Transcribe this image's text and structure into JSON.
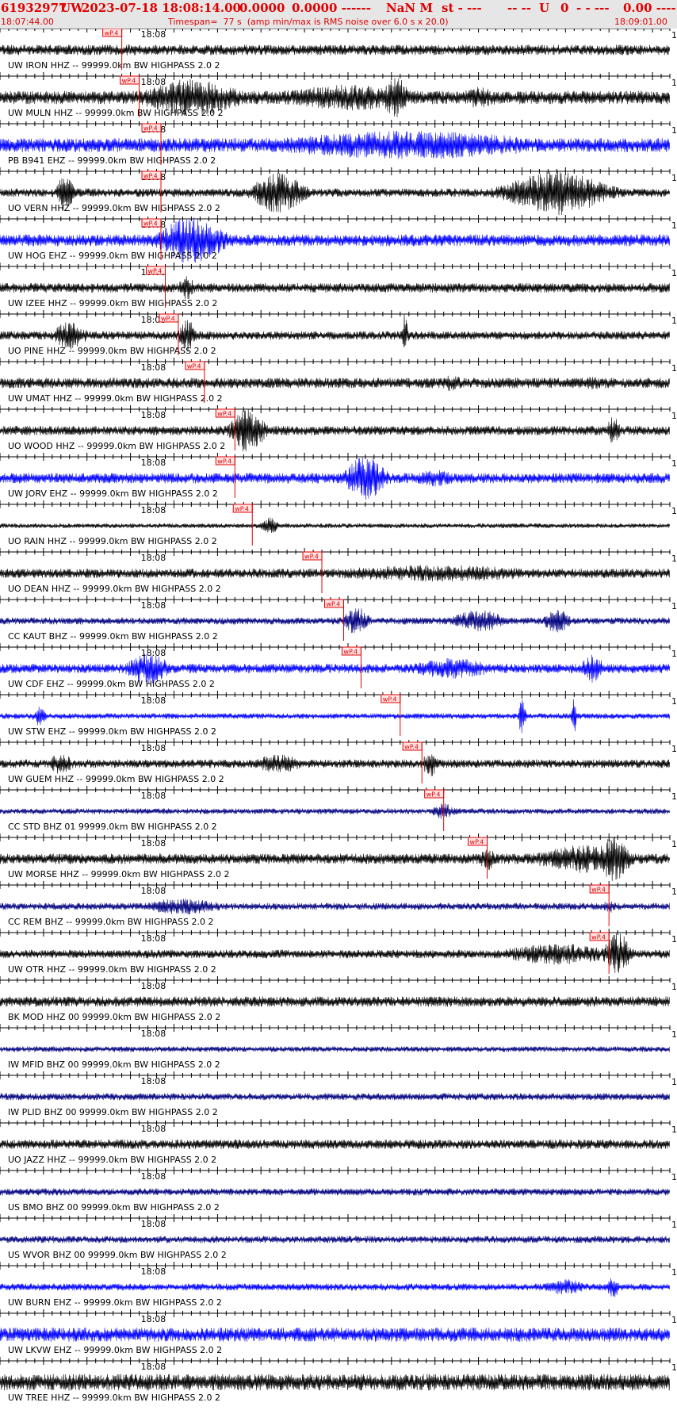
{
  "header": {
    "event_id": "61932977",
    "network": "UW",
    "datetime": "2023-07-18 18:08:14.00",
    "lat": "0.0000",
    "lon": "0.0000 ------",
    "magnitude": "NaN M",
    "mag_code": "st - ---",
    "flags": "-- --",
    "review": "U",
    "version": "0",
    "dashes": "- - ---",
    "right_value": "0.00 ----",
    "start_time": "18:07:44.00",
    "timespan_text": "Timespan=  77 s  (amp min/max is RMS noise over 6.0 s x 20.0)",
    "end_time": "18:09:01.00"
  },
  "colors": {
    "header_bg": "#e6e6e6",
    "header_text": "#e00000",
    "pick": "#e00000",
    "black": "#000000",
    "blue": "#0000ff",
    "navy": "#00007f"
  },
  "time_axis": {
    "start": "18:07:44.00",
    "end": "18:09:01.00",
    "span_s": 77,
    "minute_mark": "18:08",
    "minute_mark_s": 16,
    "tick_step_s": 1,
    "major_tick_step_s": 5
  },
  "scale_marker": "1",
  "pick_label": "wP.4",
  "chart_data": {
    "type": "line",
    "title": "",
    "x_unit": "seconds after 18:07:44.00",
    "xlim": [
      0,
      77
    ],
    "traces": [
      {
        "label": "UW IRON HHZ -- 99999.0km BW HIGHPASS 2.0 2",
        "color": "black",
        "pick_s": 14.0,
        "amp": 0.22,
        "bursts": [
          [
            15,
            2.5,
            0.25
          ],
          [
            28,
            2.5,
            0.15
          ]
        ]
      },
      {
        "label": "UW MULN HHZ -- 99999.0km BW HIGHPASS 2.0 2",
        "color": "black",
        "pick_s": 16.0,
        "amp": 0.28,
        "bursts": [
          [
            22,
            6,
            0.8
          ],
          [
            40,
            9,
            0.55
          ],
          [
            45.5,
            1.5,
            0.9
          ],
          [
            55,
            3,
            0.45
          ]
        ]
      },
      {
        "label": "PB B941 EHZ -- 99999.0km BW HIGHPASS 2.0 2",
        "color": "blue",
        "pick_s": 18.5,
        "amp": 0.3,
        "bursts": [
          [
            47,
            18,
            0.6
          ]
        ]
      },
      {
        "label": "UO VERN HHZ -- 99999.0km BW HIGHPASS 2.0 2",
        "color": "black",
        "pick_s": 18.5,
        "amp": 0.18,
        "bursts": [
          [
            7.5,
            1,
            0.8
          ],
          [
            32,
            3,
            0.9
          ],
          [
            64,
            6,
            0.95
          ]
        ]
      },
      {
        "label": "UW HOG EHZ -- 99999.0km BW HIGHPASS 2.0 2",
        "color": "blue",
        "pick_s": 18.5,
        "amp": 0.25,
        "bursts": [
          [
            22,
            4,
            1.0
          ]
        ]
      },
      {
        "label": "UW IZEE HHZ -- 99999.0km BW HIGHPASS 2.0 2",
        "color": "black",
        "pick_s": 19.0,
        "amp": 0.2,
        "bursts": [
          [
            21.5,
            1,
            0.5
          ]
        ]
      },
      {
        "label": "UO PINE HHZ -- 99999.0km BW HIGHPASS 2.0 2",
        "color": "black",
        "pick_s": 20.5,
        "amp": 0.18,
        "bursts": [
          [
            8,
            2,
            0.6
          ],
          [
            21.5,
            1,
            0.7
          ],
          [
            46.5,
            0.4,
            0.9
          ]
        ]
      },
      {
        "label": "UW UMAT HHZ -- 99999.0km BW HIGHPASS 2.0 2",
        "color": "black",
        "pick_s": 23.5,
        "amp": 0.22,
        "bursts": [
          [
            52,
            2,
            0.35
          ],
          [
            68,
            1.5,
            0.3
          ]
        ]
      },
      {
        "label": "UO WOOD HHZ -- 99999.0km BW HIGHPASS 2.0 2",
        "color": "black",
        "pick_s": 27.0,
        "amp": 0.2,
        "bursts": [
          [
            28.5,
            2,
            0.95
          ],
          [
            70.5,
            0.8,
            0.6
          ]
        ]
      },
      {
        "label": "UW JORV EHZ -- 99999.0km BW HIGHPASS 2.0 2",
        "color": "blue",
        "pick_s": 27.0,
        "amp": 0.22,
        "bursts": [
          [
            42,
            2.5,
            0.95
          ],
          [
            50,
            3,
            0.35
          ]
        ]
      },
      {
        "label": "UO RAIN HHZ -- 99999.0km BW HIGHPASS 2.0 2",
        "color": "black",
        "pick_s": 29.0,
        "amp": 0.1,
        "bursts": [
          [
            31,
            1,
            0.4
          ]
        ]
      },
      {
        "label": "UO DEAN HHZ -- 99999.0km BW HIGHPASS 2.0 2",
        "color": "black",
        "pick_s": 37.0,
        "amp": 0.2,
        "bursts": [
          [
            50,
            15,
            0.35
          ]
        ]
      },
      {
        "label": "CC KAUT BHZ -- 99999.0km BW HIGHPASS 2.0 2",
        "color": "navy",
        "pick_s": 39.5,
        "amp": 0.15,
        "bursts": [
          [
            41,
            1.5,
            0.6
          ],
          [
            55,
            3,
            0.5
          ],
          [
            64,
            1.5,
            0.55
          ]
        ]
      },
      {
        "label": "UW CDF EHZ -- 99999.0km BW HIGHPASS 2.0 2",
        "color": "blue",
        "pick_s": 41.5,
        "amp": 0.2,
        "bursts": [
          [
            17,
            2.5,
            0.7
          ],
          [
            52,
            5,
            0.45
          ],
          [
            68,
            1.5,
            0.6
          ]
        ]
      },
      {
        "label": "UW STW EHZ -- 99999.0km BW HIGHPASS 2.0 2",
        "color": "blue",
        "pick_s": 46.0,
        "amp": 0.12,
        "bursts": [
          [
            4.5,
            0.8,
            0.45
          ],
          [
            60,
            0.4,
            0.8
          ],
          [
            66,
            0.3,
            0.8
          ]
        ]
      },
      {
        "label": "UW GUEM HHZ -- 99999.0km BW HIGHPASS 2.0 2",
        "color": "black",
        "pick_s": 48.5,
        "amp": 0.18,
        "bursts": [
          [
            7,
            1.5,
            0.45
          ],
          [
            32,
            3,
            0.4
          ],
          [
            49.5,
            1,
            0.55
          ]
        ]
      },
      {
        "label": "CC STD BHZ 01 99999.0km BW HIGHPASS 2.0 2",
        "color": "navy",
        "pick_s": 51.0,
        "amp": 0.12,
        "bursts": [
          [
            51,
            1.5,
            0.35
          ]
        ]
      },
      {
        "label": "UW MORSE HHZ -- 99999.0km BW HIGHPASS 2.0 2",
        "color": "black",
        "pick_s": 56.0,
        "amp": 0.22,
        "bursts": [
          [
            56,
            1,
            0.5
          ],
          [
            67,
            6,
            0.6
          ],
          [
            70.5,
            2,
            0.95
          ]
        ]
      },
      {
        "label": "CC REM BHZ -- 99999.0km BW HIGHPASS 2.0 2",
        "color": "navy",
        "pick_s": 70.0,
        "amp": 0.15,
        "bursts": [
          [
            21,
            5,
            0.35
          ],
          [
            70,
            0.8,
            0.3
          ]
        ]
      },
      {
        "label": "UW OTR HHZ -- 99999.0km BW HIGHPASS 2.0 2",
        "color": "black",
        "pick_s": 70.0,
        "amp": 0.18,
        "bursts": [
          [
            64,
            7,
            0.45
          ],
          [
            71,
            1.5,
            0.95
          ]
        ]
      },
      {
        "label": "BK MOD HHZ 00 99999.0km BW HIGHPASS 2.0 2",
        "color": "black",
        "pick_s": null,
        "amp": 0.22,
        "bursts": []
      },
      {
        "label": "IW MFID BHZ 00 99999.0km BW HIGHPASS 2.0 2",
        "color": "navy",
        "pick_s": null,
        "amp": 0.12,
        "bursts": []
      },
      {
        "label": "IW PLID BHZ 00 99999.0km BW HIGHPASS 2.0 2",
        "color": "navy",
        "pick_s": null,
        "amp": 0.15,
        "bursts": []
      },
      {
        "label": "UO JAZZ HHZ -- 99999.0km BW HIGHPASS 2.0 2",
        "color": "black",
        "pick_s": null,
        "amp": 0.2,
        "bursts": []
      },
      {
        "label": "US BMO BHZ 00 99999.0km BW HIGHPASS 2.0 2",
        "color": "navy",
        "pick_s": null,
        "amp": 0.15,
        "bursts": []
      },
      {
        "label": "US WVOR BHZ 00 99999.0km BW HIGHPASS 2.0 2",
        "color": "navy",
        "pick_s": null,
        "amp": 0.15,
        "bursts": []
      },
      {
        "label": "UW BURN EHZ -- 99999.0km BW HIGHPASS 2.0 2",
        "color": "blue",
        "pick_s": null,
        "amp": 0.15,
        "bursts": [
          [
            65,
            2.5,
            0.35
          ],
          [
            70.5,
            0.8,
            0.45
          ]
        ]
      },
      {
        "label": "UW LKVW EHZ -- 99999.0km BW HIGHPASS 2.0 2",
        "color": "blue",
        "pick_s": null,
        "amp": 0.3,
        "bursts": []
      },
      {
        "label": "UW TREE HHZ -- 99999.0km BW HIGHPASS 2.0 2",
        "color": "black",
        "pick_s": null,
        "amp": 0.35,
        "bursts": []
      }
    ]
  }
}
